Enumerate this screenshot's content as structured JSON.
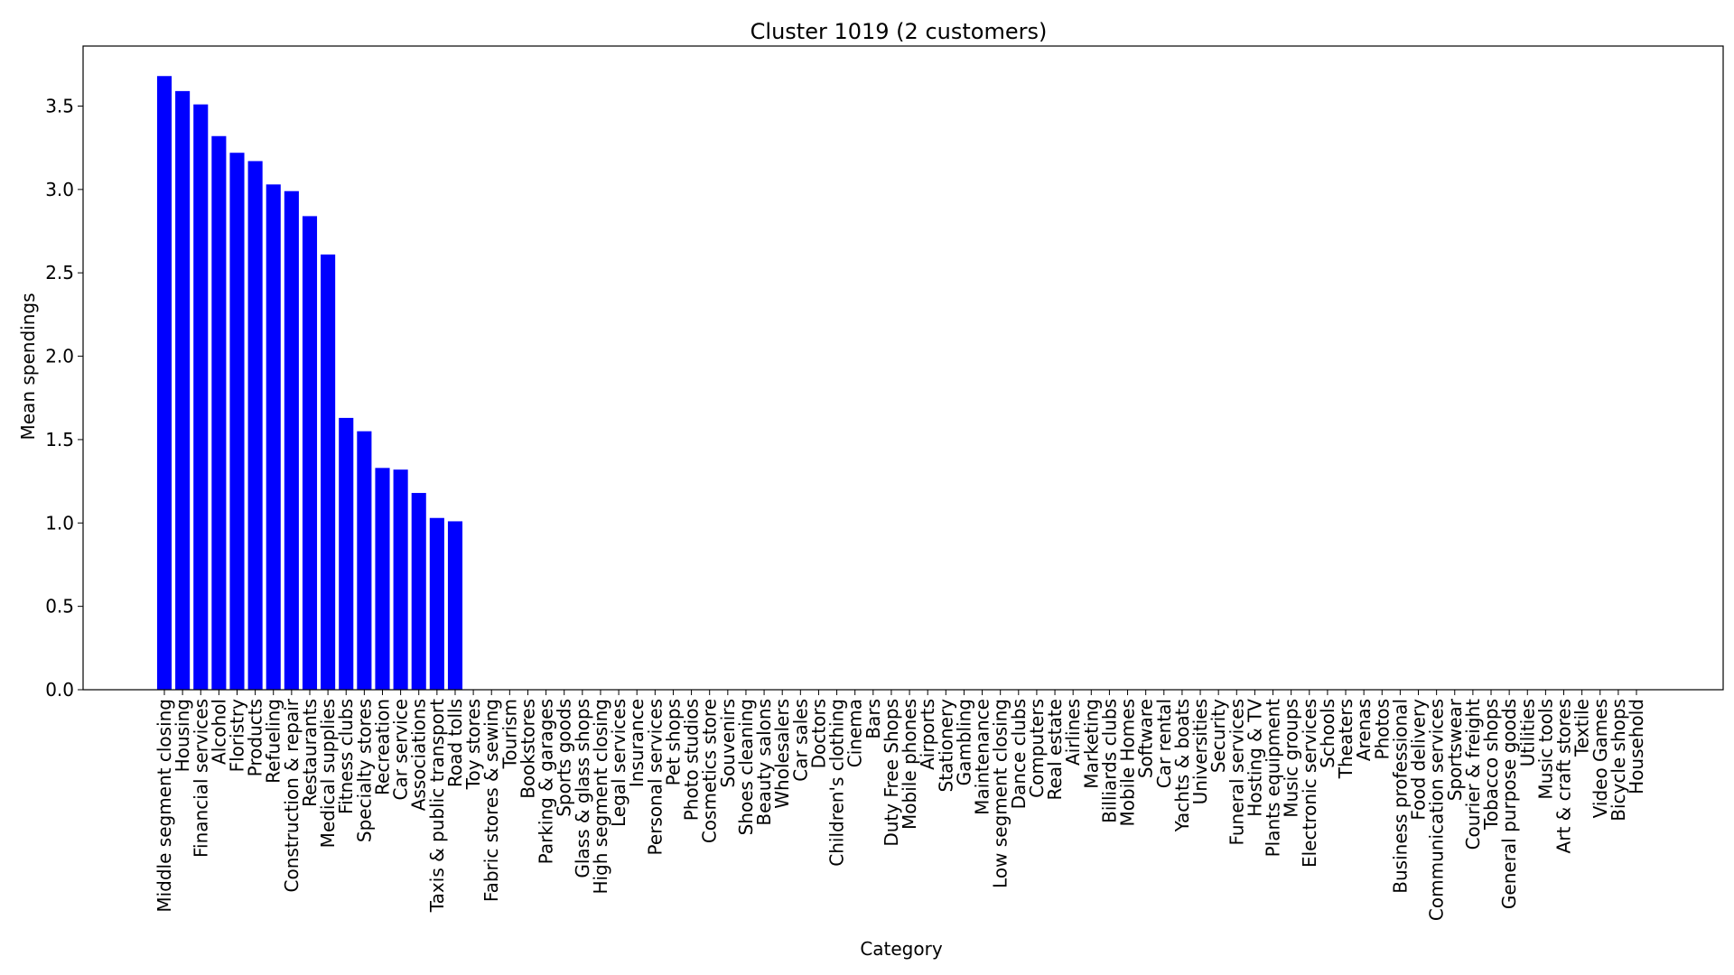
{
  "chart_data": {
    "type": "bar",
    "title": "Cluster 1019 (2 customers)",
    "xlabel": "Category",
    "ylabel": "Mean spendings",
    "ylim": [
      0,
      3.86
    ],
    "yticks": [
      "0.0",
      "0.5",
      "1.0",
      "1.5",
      "2.0",
      "2.5",
      "3.0",
      "3.5"
    ],
    "grid": false,
    "bar_color": "#0000ff",
    "categories": [
      "Middle segment closing",
      "Housing",
      "Financial services",
      "Alcohol",
      "Floristry",
      "Products",
      "Refueling",
      "Construction & repair",
      "Restaurants",
      "Medical supplies",
      "Fitness clubs",
      "Specialty stores",
      "Recreation",
      "Car service",
      "Associations",
      "Taxis & public transport",
      "Road tolls",
      "Toy stores",
      "Fabric stores & sewing",
      "Tourism",
      "Bookstores",
      "Parking & garages",
      "Sports goods",
      "Glass & glass shops",
      "High segment closing",
      "Legal services",
      "Insurance",
      "Personal services",
      "Pet shops",
      "Photo studios",
      "Cosmetics store",
      "Souvenirs",
      "Shoes cleaning",
      "Beauty salons",
      "Wholesalers",
      "Car sales",
      "Doctors",
      "Children's clothing",
      "Cinema",
      "Bars",
      "Duty Free Shops",
      "Mobile phones",
      "Airports",
      "Stationery",
      "Gambling",
      "Maintenance",
      "Low segment closing",
      "Dance clubs",
      "Computers",
      "Real estate",
      "Airlines",
      "Marketing",
      "Billiards clubs",
      "Mobile Homes",
      "Software",
      "Car rental",
      "Yachts & boats",
      "Universities",
      "Security",
      "Funeral services",
      "Hosting & TV",
      "Plants equipment",
      "Music groups",
      "Electronic services",
      "Schools",
      "Theaters",
      "Arenas",
      "Photos",
      "Business professional",
      "Food delivery",
      "Communication services",
      "Sportswear",
      "Courier & freight",
      "Tobacco shops",
      "General purpose goods",
      "Utilities",
      "Music tools",
      "Art & craft stores",
      "Textile",
      "Video Games",
      "Bicycle shops",
      "Household"
    ],
    "values": [
      3.68,
      3.59,
      3.51,
      3.32,
      3.22,
      3.17,
      3.03,
      2.99,
      2.84,
      2.61,
      1.63,
      1.55,
      1.33,
      1.32,
      1.18,
      1.03,
      1.01,
      0,
      0,
      0,
      0,
      0,
      0,
      0,
      0,
      0,
      0,
      0,
      0,
      0,
      0,
      0,
      0,
      0,
      0,
      0,
      0,
      0,
      0,
      0,
      0,
      0,
      0,
      0,
      0,
      0,
      0,
      0,
      0,
      0,
      0,
      0,
      0,
      0,
      0,
      0,
      0,
      0,
      0,
      0,
      0,
      0,
      0,
      0,
      0,
      0,
      0,
      0,
      0,
      0,
      0,
      0,
      0,
      0,
      0,
      0,
      0,
      0,
      0,
      0,
      0,
      0
    ]
  }
}
